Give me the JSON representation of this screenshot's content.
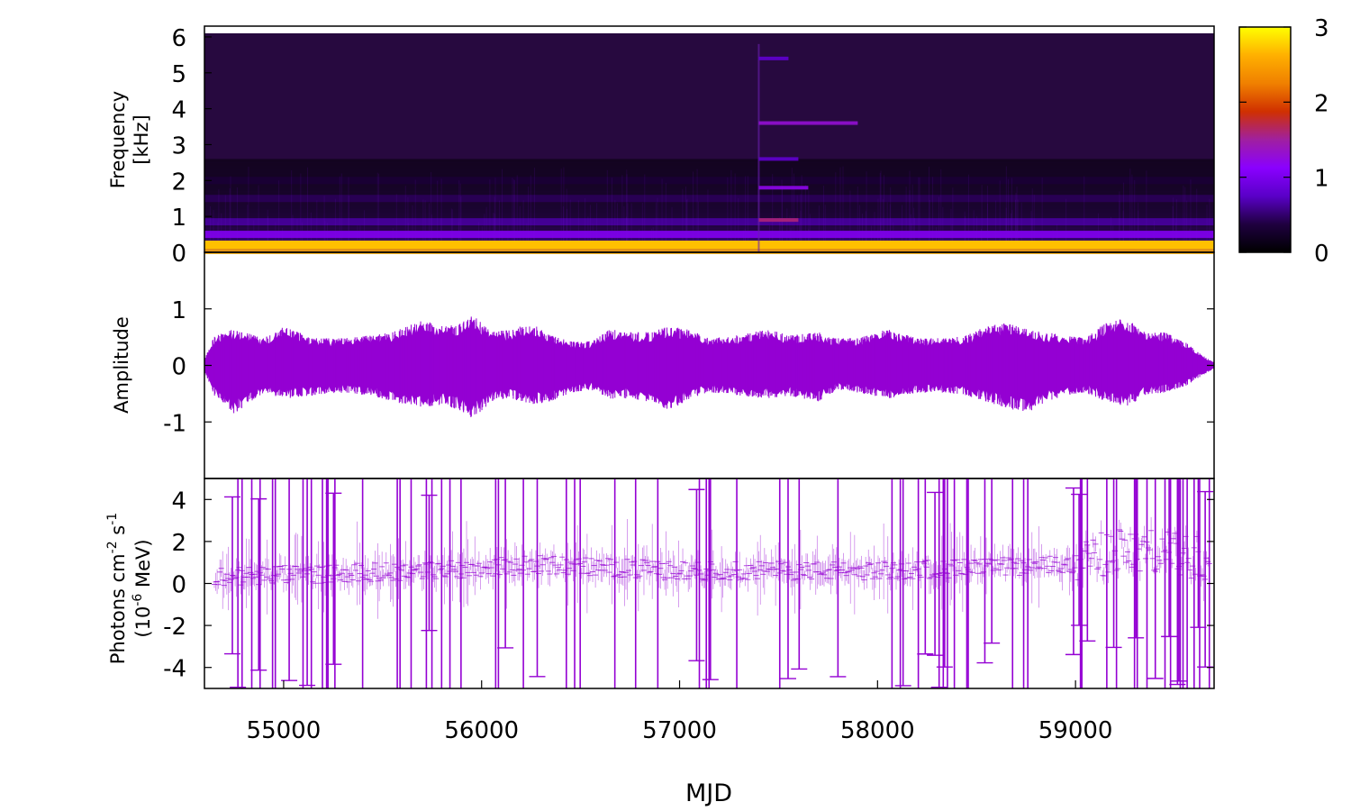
{
  "figure": {
    "xlabel": "MJD"
  },
  "chart_data": [
    {
      "type": "heatmap",
      "panel": "spectrogram",
      "ylabel_lines": [
        "Frequency",
        "[kHz]"
      ],
      "x_range": [
        54600,
        59700
      ],
      "y_range": [
        0,
        6.3
      ],
      "y_data_max": 6.1,
      "yticks": [
        0,
        1,
        2,
        3,
        4,
        5,
        6
      ],
      "colorbar": {
        "range": [
          0,
          3
        ],
        "ticks": [
          0,
          1,
          2,
          3
        ],
        "palette": [
          "#000000",
          "#1f0040",
          "#5a00c8",
          "#8a00ff",
          "#a020a0",
          "#d03000",
          "#f08000",
          "#ffb000",
          "#ffff00"
        ]
      },
      "background_color": "#27093f",
      "bands": [
        {
          "freq_khz": 0.05,
          "intensity": 2.6,
          "x_start": 54600,
          "x_end": 59700
        },
        {
          "freq_khz": 0.2,
          "intensity": 2.0,
          "x_start": 54600,
          "x_end": 59300
        },
        {
          "freq_khz": 0.5,
          "intensity": 1.1,
          "x_start": 54600,
          "x_end": 59700
        },
        {
          "freq_khz": 0.85,
          "intensity": 0.65,
          "x_start": 54600,
          "x_end": 59700
        },
        {
          "freq_khz": 1.5,
          "intensity": 0.45,
          "x_start": 54600,
          "x_end": 59700
        },
        {
          "freq_khz": 2.0,
          "intensity": 0.32,
          "x_start": 54600,
          "x_end": 59700
        }
      ],
      "transient_lines": [
        {
          "freq_khz": 0.9,
          "intensity": 1.6,
          "x_start": 57400,
          "x_end": 57600
        },
        {
          "freq_khz": 1.8,
          "intensity": 1.2,
          "x_start": 57400,
          "x_end": 57650
        },
        {
          "freq_khz": 2.6,
          "intensity": 0.8,
          "x_start": 57400,
          "x_end": 57600
        },
        {
          "freq_khz": 3.6,
          "intensity": 1.3,
          "x_start": 57400,
          "x_end": 57900
        },
        {
          "freq_khz": 5.4,
          "intensity": 0.8,
          "x_start": 57400,
          "x_end": 57550
        }
      ],
      "transient_onset_mjd": 57400
    },
    {
      "type": "line",
      "panel": "waveform",
      "ylabel": "Amplitude",
      "x_range": [
        54600,
        59700
      ],
      "y_range": [
        -2,
        2
      ],
      "yticks": [
        -1,
        0,
        1
      ],
      "color": "#9400d3",
      "envelope": {
        "x": [
          54600,
          54650,
          54750,
          54900,
          55000,
          55150,
          55300,
          55450,
          55550,
          55700,
          55800,
          55900,
          55950,
          56050,
          56150,
          56250,
          56350,
          56450,
          56550,
          56650,
          56750,
          56850,
          56950,
          57050,
          57150,
          57300,
          57450,
          57550,
          57700,
          57800,
          57900,
          58050,
          58200,
          58350,
          58450,
          58550,
          58650,
          58750,
          58850,
          58950,
          59050,
          59150,
          59250,
          59350,
          59450,
          59550,
          59650,
          59700
        ],
        "upper": [
          0.1,
          0.5,
          0.6,
          0.45,
          0.65,
          0.45,
          0.45,
          0.5,
          0.55,
          0.75,
          0.65,
          0.7,
          0.85,
          0.55,
          0.6,
          0.7,
          0.5,
          0.4,
          0.4,
          0.6,
          0.55,
          0.55,
          0.65,
          0.6,
          0.45,
          0.5,
          0.6,
          0.5,
          0.55,
          0.45,
          0.45,
          0.6,
          0.45,
          0.45,
          0.5,
          0.65,
          0.7,
          0.6,
          0.55,
          0.5,
          0.45,
          0.7,
          0.8,
          0.55,
          0.55,
          0.4,
          0.15,
          0.05
        ],
        "lower": [
          -0.1,
          -0.5,
          -0.8,
          -0.45,
          -0.55,
          -0.5,
          -0.45,
          -0.5,
          -0.6,
          -0.7,
          -0.65,
          -0.75,
          -0.9,
          -0.6,
          -0.55,
          -0.65,
          -0.6,
          -0.45,
          -0.4,
          -0.55,
          -0.55,
          -0.6,
          -0.75,
          -0.55,
          -0.45,
          -0.5,
          -0.55,
          -0.5,
          -0.6,
          -0.4,
          -0.45,
          -0.55,
          -0.45,
          -0.45,
          -0.5,
          -0.6,
          -0.7,
          -0.8,
          -0.6,
          -0.5,
          -0.45,
          -0.6,
          -0.7,
          -0.5,
          -0.45,
          -0.35,
          -0.15,
          -0.05
        ]
      }
    },
    {
      "type": "scatter",
      "panel": "flux",
      "ylabel_lines": [
        "Photons cm",
        "-2",
        " s",
        "-1",
        "(10",
        "-6",
        " MeV)"
      ],
      "x_range": [
        54600,
        59700
      ],
      "y_range": [
        -5,
        5
      ],
      "yticks": [
        -4,
        -2,
        0,
        2,
        4
      ],
      "xticks": [
        55000,
        56000,
        57000,
        58000,
        59000
      ],
      "color": "#9400d3",
      "points_x_range": [
        54650,
        59680
      ],
      "bin_days": 7,
      "typical_flux": 0.3,
      "flux_trend": [
        {
          "x": 54600,
          "y": 0.3
        },
        {
          "x": 55700,
          "y": 0.6
        },
        {
          "x": 56300,
          "y": 0.9
        },
        {
          "x": 57000,
          "y": 0.6
        },
        {
          "x": 58000,
          "y": 0.6
        },
        {
          "x": 59000,
          "y": 0.9
        },
        {
          "x": 59200,
          "y": 1.6
        },
        {
          "x": 59700,
          "y": 1.2
        }
      ]
    }
  ]
}
